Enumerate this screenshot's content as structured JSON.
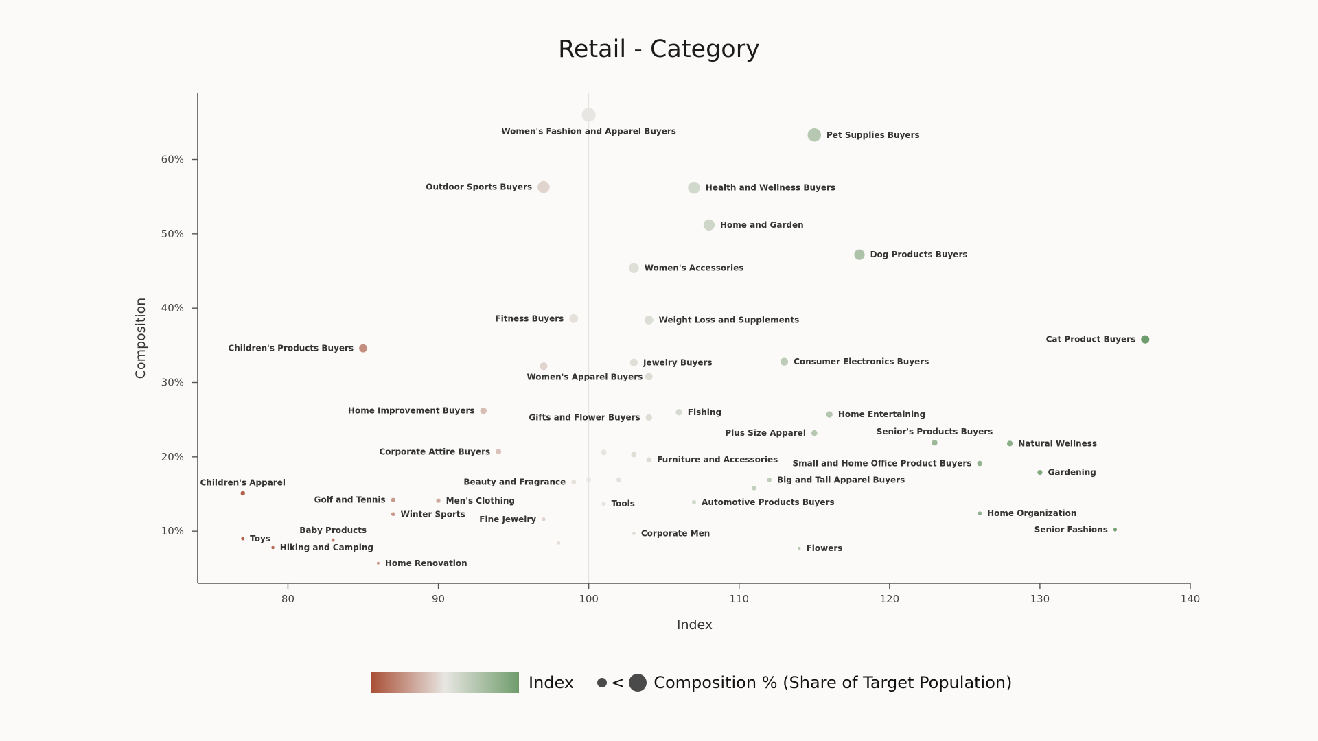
{
  "chart_data": {
    "type": "scatter",
    "title": "Retail - Category",
    "xlabel": "Index",
    "ylabel": "Composition",
    "xlim": [
      74,
      140
    ],
    "ylim": [
      3,
      69
    ],
    "x_ticks": [
      80,
      90,
      100,
      110,
      120,
      130,
      140
    ],
    "y_ticks": [
      {
        "value": 10,
        "label": "10%"
      },
      {
        "value": 20,
        "label": "20%"
      },
      {
        "value": 30,
        "label": "30%"
      },
      {
        "value": 40,
        "label": "40%"
      },
      {
        "value": 50,
        "label": "50%"
      },
      {
        "value": 60,
        "label": "60%"
      }
    ],
    "reference_line_x": 100,
    "colors": {
      "low": "#a84e35",
      "mid": "#e8e6e2",
      "high": "#6f9c6c"
    },
    "points": [
      {
        "name": "Women's Fashion and Apparel Buyers",
        "x": 100,
        "y": 66.0,
        "label_pos": "below"
      },
      {
        "name": "Pet Supplies Buyers",
        "x": 115,
        "y": 63.3,
        "label_pos": "right"
      },
      {
        "name": "Outdoor Sports Buyers",
        "x": 97,
        "y": 56.3,
        "label_pos": "left"
      },
      {
        "name": "Health and Wellness Buyers",
        "x": 107,
        "y": 56.2,
        "label_pos": "right"
      },
      {
        "name": "Home and Garden",
        "x": 108,
        "y": 51.2,
        "label_pos": "right"
      },
      {
        "name": "Dog Products Buyers",
        "x": 118,
        "y": 47.2,
        "label_pos": "right"
      },
      {
        "name": "Women's Accessories",
        "x": 103,
        "y": 45.4,
        "label_pos": "right"
      },
      {
        "name": "Fitness Buyers",
        "x": 99,
        "y": 38.6,
        "label_pos": "left"
      },
      {
        "name": "Weight Loss and Supplements",
        "x": 104,
        "y": 38.4,
        "label_pos": "right"
      },
      {
        "name": "Cat Product Buyers",
        "x": 137,
        "y": 35.8,
        "label_pos": "left"
      },
      {
        "name": "Children's Products Buyers",
        "x": 85,
        "y": 34.6,
        "label_pos": "left"
      },
      {
        "name": "Jewelry Buyers",
        "x": 103,
        "y": 32.7,
        "label_pos": "right"
      },
      {
        "name": "Consumer Electronics Buyers",
        "x": 113,
        "y": 32.8,
        "label_pos": "right"
      },
      {
        "name": "Women's Apparel Buyers",
        "x": 97,
        "y": 32.2,
        "label_pos": "none"
      },
      {
        "name": "",
        "x": 104,
        "y": 30.8,
        "label_pos": "none"
      },
      {
        "name": "Home Improvement Buyers",
        "x": 93,
        "y": 26.2,
        "label_pos": "left"
      },
      {
        "name": "Fishing",
        "x": 106,
        "y": 26.0,
        "label_pos": "right"
      },
      {
        "name": "Home Entertaining",
        "x": 116,
        "y": 25.7,
        "label_pos": "right"
      },
      {
        "name": "Gifts and Flower Buyers",
        "x": 104,
        "y": 25.3,
        "label_pos": "left"
      },
      {
        "name": "Plus Size Apparel",
        "x": 115,
        "y": 23.2,
        "label_pos": "left"
      },
      {
        "name": "Senior's Products Buyers",
        "x": 123,
        "y": 21.9,
        "label_pos": "above"
      },
      {
        "name": "Natural Wellness",
        "x": 128,
        "y": 21.8,
        "label_pos": "right"
      },
      {
        "name": "Corporate Attire Buyers",
        "x": 94,
        "y": 20.7,
        "label_pos": "left"
      },
      {
        "name": "",
        "x": 101,
        "y": 20.6,
        "label_pos": "none"
      },
      {
        "name": "",
        "x": 103,
        "y": 20.3,
        "label_pos": "none"
      },
      {
        "name": "Furniture and Accessories",
        "x": 104,
        "y": 19.6,
        "label_pos": "right"
      },
      {
        "name": "Small and Home Office Product Buyers",
        "x": 126,
        "y": 19.1,
        "label_pos": "left"
      },
      {
        "name": "Gardening",
        "x": 130,
        "y": 17.9,
        "label_pos": "right"
      },
      {
        "name": "Children's Apparel",
        "x": 77,
        "y": 15.1,
        "label_pos": "above"
      },
      {
        "name": "",
        "x": 100,
        "y": 16.9,
        "label_pos": "none"
      },
      {
        "name": "",
        "x": 102,
        "y": 16.9,
        "label_pos": "none"
      },
      {
        "name": "Beauty and Fragrance",
        "x": 99,
        "y": 16.6,
        "label_pos": "left"
      },
      {
        "name": "Big and Tall Apparel Buyers",
        "x": 112,
        "y": 16.9,
        "label_pos": "right"
      },
      {
        "name": "",
        "x": 111,
        "y": 15.8,
        "label_pos": "none"
      },
      {
        "name": "Golf and Tennis",
        "x": 87,
        "y": 14.2,
        "label_pos": "left"
      },
      {
        "name": "Men's Clothing",
        "x": 90,
        "y": 14.1,
        "label_pos": "right"
      },
      {
        "name": "Tools",
        "x": 101,
        "y": 13.7,
        "label_pos": "right"
      },
      {
        "name": "Automotive Products Buyers",
        "x": 107,
        "y": 13.9,
        "label_pos": "right"
      },
      {
        "name": "Winter Sports",
        "x": 87,
        "y": 12.3,
        "label_pos": "right"
      },
      {
        "name": "Home Organization",
        "x": 126,
        "y": 12.4,
        "label_pos": "right"
      },
      {
        "name": "Fine Jewelry",
        "x": 97,
        "y": 11.6,
        "label_pos": "left"
      },
      {
        "name": "Senior Fashions",
        "x": 135,
        "y": 10.2,
        "label_pos": "left"
      },
      {
        "name": "Baby Products",
        "x": 83,
        "y": 8.8,
        "label_pos": "above"
      },
      {
        "name": "Toys",
        "x": 77,
        "y": 9.0,
        "label_pos": "right"
      },
      {
        "name": "Corporate Men",
        "x": 103,
        "y": 9.7,
        "label_pos": "right"
      },
      {
        "name": "Hiking and Camping",
        "x": 79,
        "y": 7.8,
        "label_pos": "right"
      },
      {
        "name": "",
        "x": 98,
        "y": 8.4,
        "label_pos": "none"
      },
      {
        "name": "Flowers",
        "x": 114,
        "y": 7.7,
        "label_pos": "right"
      },
      {
        "name": "Home Renovation",
        "x": 86,
        "y": 5.7,
        "label_pos": "right"
      }
    ],
    "legend": {
      "index_label": "Index",
      "size_label": "Composition % (Share of Target Population)",
      "size_separator": "<"
    }
  }
}
